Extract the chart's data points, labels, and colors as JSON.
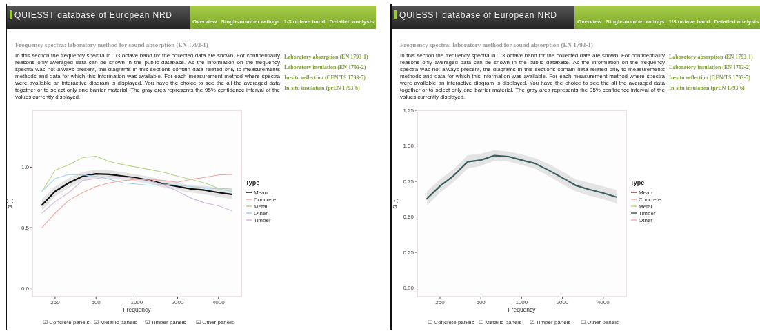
{
  "chart_data": [
    {
      "type": "line",
      "title": "QUIESST database of European NRD",
      "subtitle": "Frequency spectra: laboratory method for sound absorption (EN 1793-1)",
      "xlabel": "Frequency",
      "ylabel": "α [-]",
      "legend_title": "Type",
      "legend": "right",
      "log": "x",
      "annotations": [
        "Overview",
        "Single-number ratings",
        "1/3 octave band",
        "Detailed analysis",
        "In this section the frequency spectra in 1/3 octave band for the collected data are shown. For confidentiality reasons only averaged data can be shown in the public database. As the information on the frequency spectra was not always present, the diagrams in this sections contain data related only to measurements methods and data for which this information was available. For each measurement method where spectra were available an interactive diagram is displayed. You have the choice to see the all the averaged data together or to select only one barrier material. The gray area represents the 95% confidence interval of the values currently displayed.",
        "Laboratory absorption (EN 1793-1)",
        "Laboratory insulation (EN 1793-2)",
        "In-situ reflection (CEN/TS 1793-5)",
        "In-situ insulation (prEN 1793-6)",
        "☑ Concrete panels",
        "☑ Metallic panels",
        "☑ Timber panels",
        "☑ Other panels"
      ],
      "x": [
        200,
        250,
        315,
        400,
        500,
        630,
        800,
        1000,
        1250,
        1600,
        2000,
        2500,
        3150,
        4000,
        5000
      ],
      "xlim": [
        170,
        5900
      ],
      "xticks": [
        250,
        500,
        1000,
        2000,
        4000
      ],
      "ylim": [
        -0.07,
        1.47
      ],
      "yticks": [
        {
          "value": 0,
          "label": "0.0"
        },
        {
          "value": 0.5,
          "label": "0.5"
        },
        {
          "value": 1,
          "label": "1.0"
        }
      ],
      "series": [
        {
          "name": "Mean",
          "color": "#111111",
          "values": [
            0.687,
            0.8,
            0.87,
            0.925,
            0.945,
            0.94,
            0.925,
            0.91,
            0.89,
            0.86,
            0.84,
            0.82,
            0.81,
            0.79,
            0.775
          ],
          "lower": [
            0.64,
            0.76,
            0.83,
            0.89,
            0.91,
            0.905,
            0.895,
            0.88,
            0.86,
            0.83,
            0.81,
            0.79,
            0.775,
            0.755,
            0.735
          ],
          "upper": [
            0.735,
            0.84,
            0.91,
            0.96,
            0.98,
            0.975,
            0.955,
            0.94,
            0.92,
            0.89,
            0.87,
            0.85,
            0.845,
            0.825,
            0.815
          ]
        },
        {
          "name": "Concrete",
          "color": "#f2a49c",
          "values": [
            0.5,
            0.62,
            0.725,
            0.79,
            0.84,
            0.87,
            0.89,
            0.9,
            0.9,
            0.89,
            0.875,
            0.9,
            0.915,
            0.935,
            0.94
          ]
        },
        {
          "name": "Metal",
          "color": "#b5d685",
          "values": [
            0.8,
            0.975,
            1.02,
            1.08,
            1.09,
            1.045,
            1.02,
            1.0,
            0.98,
            0.955,
            0.925,
            0.9,
            0.87,
            0.825,
            0.82
          ]
        },
        {
          "name": "Other",
          "color": "#9fd4e4",
          "values": [
            0.8,
            0.905,
            0.94,
            0.935,
            0.925,
            0.9,
            0.87,
            0.86,
            0.85,
            0.86,
            0.85,
            0.84,
            0.83,
            0.82,
            0.8
          ]
        },
        {
          "name": "Timber",
          "color": "#d2b6de",
          "values": [
            0.62,
            0.715,
            0.79,
            0.89,
            0.905,
            0.925,
            0.92,
            0.905,
            0.89,
            0.85,
            0.8,
            0.745,
            0.705,
            0.68,
            0.64
          ]
        }
      ]
    },
    {
      "type": "line",
      "title": "QUIESST database of European NRD",
      "subtitle": "Frequency spectra: laboratory method for sound absorption (EN 1793-1)",
      "xlabel": "Frequency",
      "ylabel": "α [-]",
      "legend_title": "Type",
      "legend": "right",
      "log": "x",
      "annotations": [
        "Overview",
        "Single-number ratings",
        "1/3 octave band",
        "Detailed analysis",
        "In this section the frequency spectra in 1/3 octave band for the collected data are shown. For confidentiality reasons only averaged data can be shown in the public database. As the information on the frequency spectra was not always present, the diagrams in this sections contain data related only to measurements methods and data for which this information was available. For each measurement method where spectra were available an interactive diagram is displayed. You have the choice to see the all the averaged data together or to select only one barrier material. The gray area represents the 95% confidence interval of the values currently displayed.",
        "Laboratory absorption (EN 1793-1)",
        "Laboratory insulation (EN 1793-2)",
        "In-situ reflection (CEN/TS 1793-5)",
        "In-situ insulation (prEN 1793-6)",
        "☐ Concrete panels",
        "☐ Metallic panels",
        "☑ Timber panels",
        "☐ Other panels"
      ],
      "x": [
        200,
        250,
        315,
        400,
        500,
        630,
        800,
        1000,
        1250,
        1600,
        2000,
        2500,
        3150,
        4000,
        5000
      ],
      "xlim": [
        170,
        5900
      ],
      "xticks": [
        250,
        500,
        1000,
        2000,
        4000
      ],
      "ylim": [
        -0.06,
        1.25
      ],
      "yticks": [
        {
          "value": 0,
          "label": "0.00"
        },
        {
          "value": 0.25,
          "label": "0.25"
        },
        {
          "value": 0.5,
          "label": "0.50"
        },
        {
          "value": 0.75,
          "label": "0.75"
        },
        {
          "value": 1,
          "label": "1.00"
        },
        {
          "value": 1.25,
          "label": "1.25"
        }
      ],
      "series": [
        {
          "name": "Mean",
          "color": "#8a3b3b",
          "values": [
            null,
            null,
            null,
            null,
            null,
            null,
            null,
            null,
            null,
            null,
            null,
            null,
            null,
            null,
            null
          ]
        },
        {
          "name": "Concrete",
          "color": "#f2a49c",
          "values": [
            null,
            null,
            null,
            null,
            null,
            null,
            null,
            null,
            null,
            null,
            null,
            null,
            null,
            null,
            null
          ]
        },
        {
          "name": "Metal",
          "color": "#b5d685",
          "values": [
            null,
            null,
            null,
            null,
            null,
            null,
            null,
            null,
            null,
            null,
            null,
            null,
            null,
            null,
            null
          ]
        },
        {
          "name": "Timber",
          "color": "#3b5f60",
          "values": [
            0.628,
            0.717,
            0.79,
            0.888,
            0.9,
            0.932,
            0.925,
            0.9,
            0.877,
            0.826,
            0.775,
            0.722,
            0.693,
            0.668,
            0.64
          ],
          "lower": [
            0.58,
            0.67,
            0.745,
            0.84,
            0.86,
            0.895,
            0.89,
            0.865,
            0.84,
            0.785,
            0.73,
            0.68,
            0.65,
            0.625,
            0.595
          ],
          "upper": [
            0.68,
            0.765,
            0.835,
            0.935,
            0.945,
            0.97,
            0.96,
            0.94,
            0.915,
            0.87,
            0.82,
            0.765,
            0.74,
            0.715,
            0.69
          ]
        },
        {
          "name": "Other",
          "color": "#f0a8c0",
          "values": [
            null,
            null,
            null,
            null,
            null,
            null,
            null,
            null,
            null,
            null,
            null,
            null,
            null,
            null,
            null
          ]
        }
      ]
    }
  ]
}
